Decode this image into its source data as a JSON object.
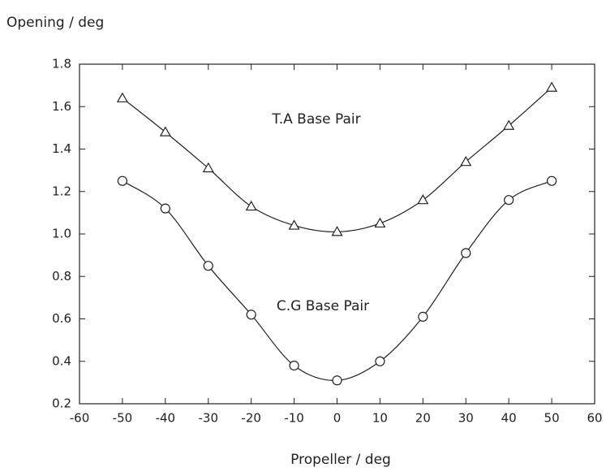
{
  "chart_data": {
    "type": "line",
    "ylabel": "Opening / deg",
    "xlabel": "Propeller / deg",
    "x": [
      -50,
      -40,
      -30,
      -20,
      -10,
      0,
      10,
      20,
      30,
      40,
      50
    ],
    "series": [
      {
        "name": "T.A Base Pair",
        "color": "#222222",
        "marker": "triangle",
        "values": [
          1.64,
          1.48,
          1.31,
          1.13,
          1.04,
          1.01,
          1.05,
          1.16,
          1.34,
          1.51,
          1.69
        ]
      },
      {
        "name": "C.G Base Pair",
        "color": "#222222",
        "marker": "circle",
        "values": [
          1.25,
          1.12,
          0.85,
          0.62,
          0.38,
          0.31,
          0.4,
          0.61,
          0.91,
          1.16,
          1.25
        ]
      }
    ],
    "xlim": [
      -60,
      60
    ],
    "xticks": [
      -60,
      -50,
      -40,
      -30,
      -20,
      -10,
      0,
      10,
      20,
      30,
      40,
      50,
      60
    ],
    "ylim": [
      0.2,
      1.8
    ],
    "yticks": [
      0.2,
      0.4,
      0.6,
      0.8,
      {
        "value": 1,
        "label": "1.0"
      },
      1.2,
      1.4,
      1.6,
      1.8
    ],
    "grid": false
  }
}
